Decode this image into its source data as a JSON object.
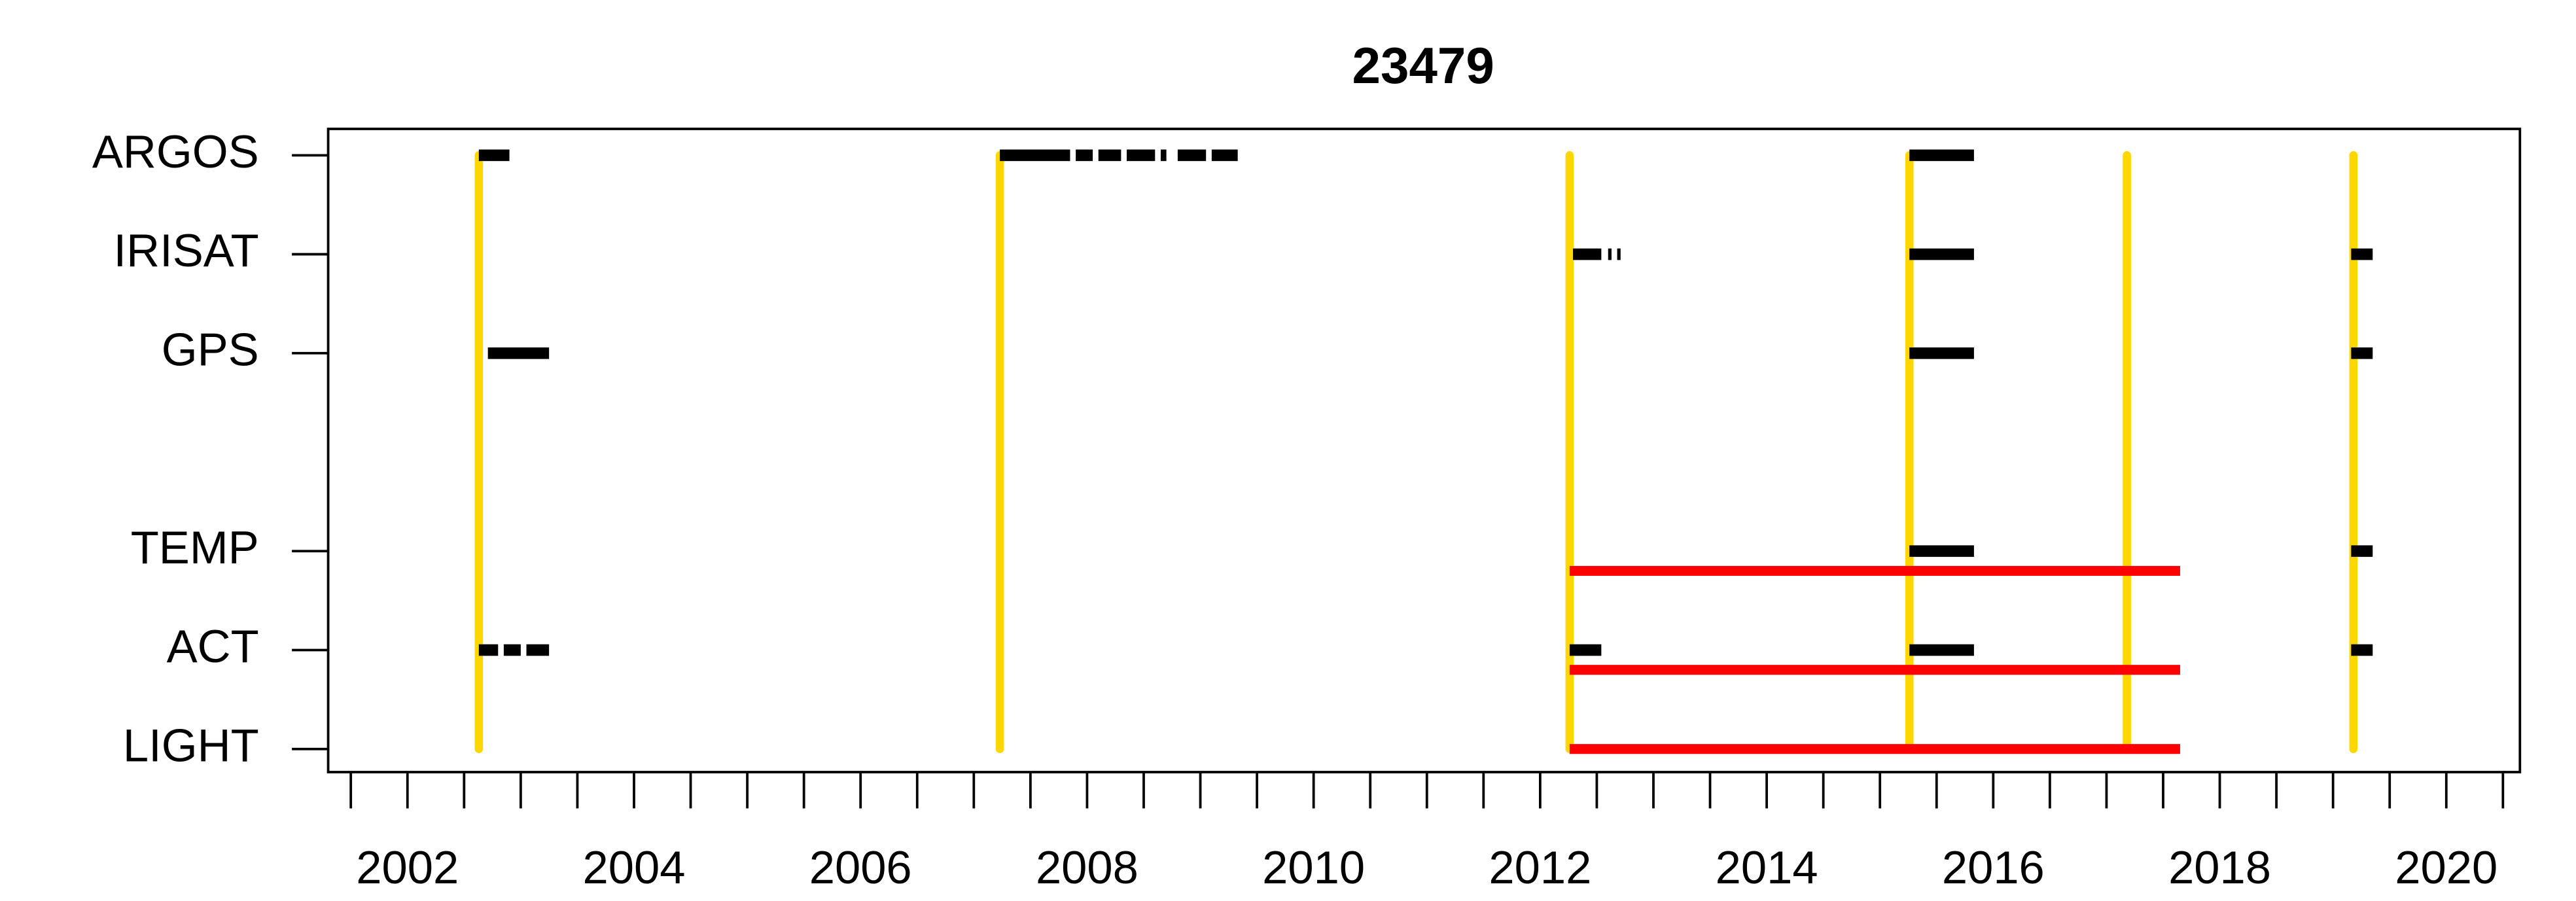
{
  "chart_data": {
    "type": "timeline",
    "title": "23479",
    "categories": [
      "ARGOS",
      "IRISAT",
      "GPS",
      null,
      "TEMP",
      "ACT",
      "LIGHT"
    ],
    "xlim": [
      2001.3,
      2020.65
    ],
    "xticks": [
      2002,
      2004,
      2006,
      2008,
      2010,
      2012,
      2014,
      2016,
      2018,
      2020
    ],
    "xminorticks": [
      2001.5,
      2002.5,
      2003,
      2003.5,
      2004.5,
      2005,
      2005.5,
      2006.5,
      2007,
      2007.5,
      2008.5,
      2009,
      2009.5,
      2010.5,
      2011,
      2011.5,
      2012.5,
      2013,
      2013.5,
      2014.5,
      2015,
      2015.5,
      2016.5,
      2017,
      2017.5,
      2018.5,
      2019,
      2019.5,
      2020.5
    ],
    "deployments": {
      "color": "#FFD700",
      "dates": [
        2002.63,
        2007.23,
        2012.26,
        2015.26,
        2017.18,
        2019.18
      ]
    },
    "series": [
      {
        "color": "#000000",
        "segments": [
          {
            "category": "ARGOS",
            "start": 2002.63,
            "end": 2002.9
          },
          {
            "category": "ARGOS",
            "start": 2007.23,
            "end": 2007.85
          },
          {
            "category": "ARGOS",
            "start": 2007.9,
            "end": 2008.05
          },
          {
            "category": "ARGOS",
            "start": 2008.1,
            "end": 2008.3
          },
          {
            "category": "ARGOS",
            "start": 2008.35,
            "end": 2008.6
          },
          {
            "category": "ARGOS",
            "start": 2008.65,
            "end": 2008.7
          },
          {
            "category": "ARGOS",
            "start": 2008.8,
            "end": 2009.05
          },
          {
            "category": "ARGOS",
            "start": 2009.1,
            "end": 2009.33
          },
          {
            "category": "ARGOS",
            "start": 2015.26,
            "end": 2015.83
          },
          {
            "category": "IRISAT",
            "start": 2012.29,
            "end": 2012.54
          },
          {
            "category": "IRISAT",
            "start": 2012.6,
            "end": 2012.63
          },
          {
            "category": "IRISAT",
            "start": 2012.68,
            "end": 2012.71
          },
          {
            "category": "IRISAT",
            "start": 2015.26,
            "end": 2015.83
          },
          {
            "category": "IRISAT",
            "start": 2019.16,
            "end": 2019.35
          },
          {
            "category": "GPS",
            "start": 2002.71,
            "end": 2003.25
          },
          {
            "category": "GPS",
            "start": 2015.26,
            "end": 2015.83
          },
          {
            "category": "GPS",
            "start": 2019.16,
            "end": 2019.35
          },
          {
            "category": "TEMP",
            "start": 2015.26,
            "end": 2015.83
          },
          {
            "category": "TEMP",
            "start": 2019.16,
            "end": 2019.35
          },
          {
            "category": "ACT",
            "start": 2002.63,
            "end": 2002.8
          },
          {
            "category": "ACT",
            "start": 2002.85,
            "end": 2003.0
          },
          {
            "category": "ACT",
            "start": 2003.05,
            "end": 2003.25
          },
          {
            "category": "ACT",
            "start": 2012.26,
            "end": 2012.54
          },
          {
            "category": "ACT",
            "start": 2015.26,
            "end": 2015.83
          },
          {
            "category": "ACT",
            "start": 2019.16,
            "end": 2019.35
          }
        ]
      },
      {
        "color": "#FF0000",
        "segments": [
          {
            "category": "TEMP",
            "start": 2012.26,
            "end": 2017.65
          },
          {
            "category": "ACT",
            "start": 2012.26,
            "end": 2017.65
          },
          {
            "category": "LIGHT",
            "start": 2012.26,
            "end": 2017.65
          }
        ]
      }
    ]
  }
}
